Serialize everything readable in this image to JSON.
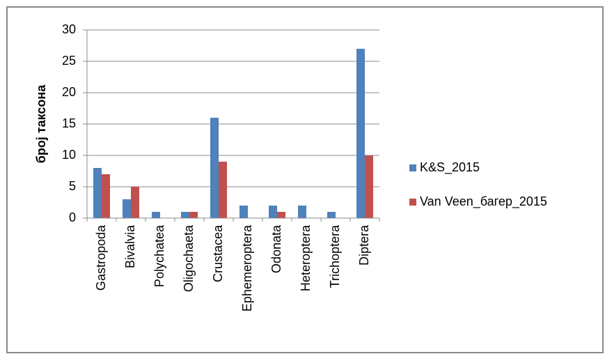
{
  "chart_data": {
    "type": "bar",
    "y_label": "број таксона",
    "categories": [
      "Gastropoda",
      "Bivalvia",
      "Polychatea",
      "Oligochaeta",
      "Crustacea",
      "Ephemeroptera",
      "Odonata",
      "Heteroptera",
      "Trichoptera",
      "Diptera"
    ],
    "series": [
      {
        "name": "K&S_2015",
        "color": "#4f81bd",
        "values": [
          8,
          3,
          1,
          1,
          16,
          2,
          2,
          2,
          1,
          27
        ]
      },
      {
        "name": "Van Veen_багер_2015",
        "color": "#c0504d",
        "values": [
          7,
          5,
          0,
          1,
          9,
          0,
          1,
          0,
          0,
          10
        ]
      }
    ],
    "ylim": [
      0,
      30
    ],
    "yticks": [
      0,
      5,
      10,
      15,
      20,
      25,
      30
    ],
    "grid": true,
    "legend": "right"
  }
}
